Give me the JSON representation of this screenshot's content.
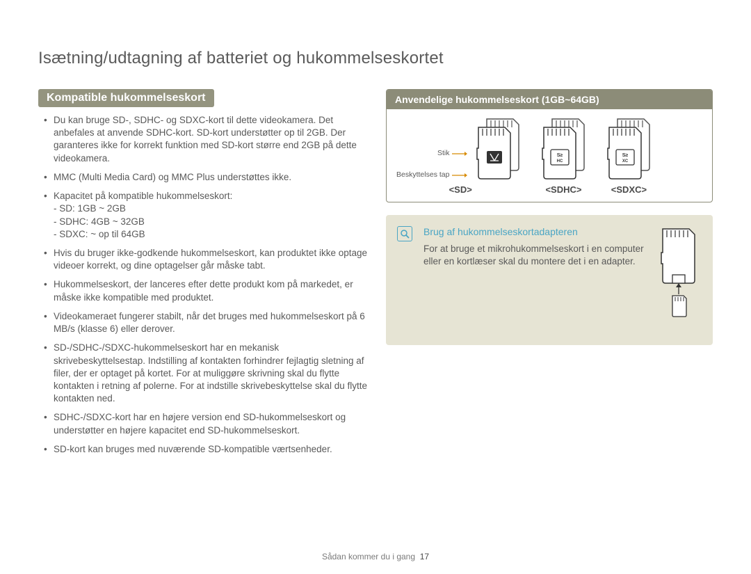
{
  "page_title": "Isætning/udtagning af batteriet og hukommelseskortet",
  "section_header": "Kompatible hukommelseskort",
  "bullets": [
    {
      "text": "Du kan bruge SD-, SDHC- og SDXC-kort til dette videokamera. Det anbefales at anvende SDHC-kort. SD-kort understøtter op til 2GB. Der garanteres ikke for korrekt funktion med SD-kort større end 2GB på dette videokamera."
    },
    {
      "text": "MMC (Multi Media Card) og MMC Plus understøttes ikke."
    },
    {
      "text": "Kapacitet på kompatible hukommelseskort:",
      "subs": [
        "- SD: 1GB ~ 2GB",
        "- SDHC: 4GB ~ 32GB",
        "- SDXC: ~ op til 64GB"
      ]
    },
    {
      "text": "Hvis du bruger ikke-godkende hukommelseskort, kan produktet ikke optage videoer korrekt, og dine optagelser går måske tabt."
    },
    {
      "text": "Hukommelseskort, der lanceres efter dette produkt kom på markedet, er måske ikke kompatible med produktet."
    },
    {
      "text": "Videokameraet fungerer stabilt, når det bruges med hukommelseskort på 6 MB/s (klasse 6) eller derover."
    },
    {
      "text": "SD-/SDHC-/SDXC-hukommelseskort har en mekanisk skrivebeskyttelsestap. Indstilling af kontakten forhindrer fejlagtig sletning af filer, der er optaget på kortet. For at muliggøre skrivning skal du flytte kontakten i retning af polerne. For at indstille skrivebeskyttelse skal du flytte kontakten ned."
    },
    {
      "text": "SDHC-/SDXC-kort har en højere version end SD-hukommelseskort og understøtter en højere kapacitet end SD-hukommelseskort."
    },
    {
      "text": "SD-kort kan bruges med nuværende SD-kompatible værtsenheder."
    }
  ],
  "cardbox": {
    "header": "Anvendelige hukommelseskort (1GB~64GB)",
    "anno_stik": "Stik",
    "anno_tap": "Beskyttelses tap",
    "labels": {
      "sd": "<SD>",
      "sdhc": "<SDHC>",
      "sdxc": "<SDXC>"
    }
  },
  "info": {
    "title": "Brug af hukommelseskortadapteren",
    "text": "For at bruge et mikrohukommelseskort i en computer eller en kortlæser skal du montere det i en adapter."
  },
  "footer": {
    "section": "Sådan kommer du i gang",
    "page": "17"
  },
  "colors": {
    "header_bg": "#94947f",
    "box_border": "#8c8c78",
    "info_bg": "#e6e4d4",
    "accent": "#4aa5c4",
    "anno_accent": "#d88a00",
    "text": "#595959"
  }
}
